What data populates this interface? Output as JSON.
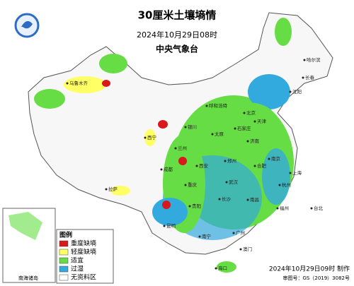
{
  "header": {
    "title": "30厘米土壤墒情",
    "time": "2024年10月29日08时",
    "agency": "中央气象台"
  },
  "legend": {
    "title": "图例",
    "items": [
      {
        "label": "重度缺墒",
        "color": "#d7191c"
      },
      {
        "label": "轻度缺墒",
        "color": "#ffff66"
      },
      {
        "label": "适宜",
        "color": "#66dd44"
      },
      {
        "label": "过湿",
        "color": "#33aadd"
      },
      {
        "label": "无资料区",
        "color": "#ffffff"
      }
    ]
  },
  "inset": {
    "label": "南海诸岛"
  },
  "footer": {
    "made": "2024年10月29日09时 制作",
    "approval": "审图号：GS（2019）3082号"
  },
  "places": [
    "乌鲁木齐",
    "拉萨",
    "西宁",
    "兰州",
    "银川",
    "呼和浩特",
    "北京",
    "天津",
    "石家庄",
    "太原",
    "济南",
    "郑州",
    "西安",
    "成都",
    "重庆",
    "武汉",
    "合肥",
    "南京",
    "上海",
    "杭州",
    "长沙",
    "南昌",
    "福州",
    "贵阳",
    "昆明",
    "南宁",
    "广州",
    "澳门",
    "海口",
    "台北",
    "哈尔滨",
    "长春",
    "沈阳"
  ]
}
